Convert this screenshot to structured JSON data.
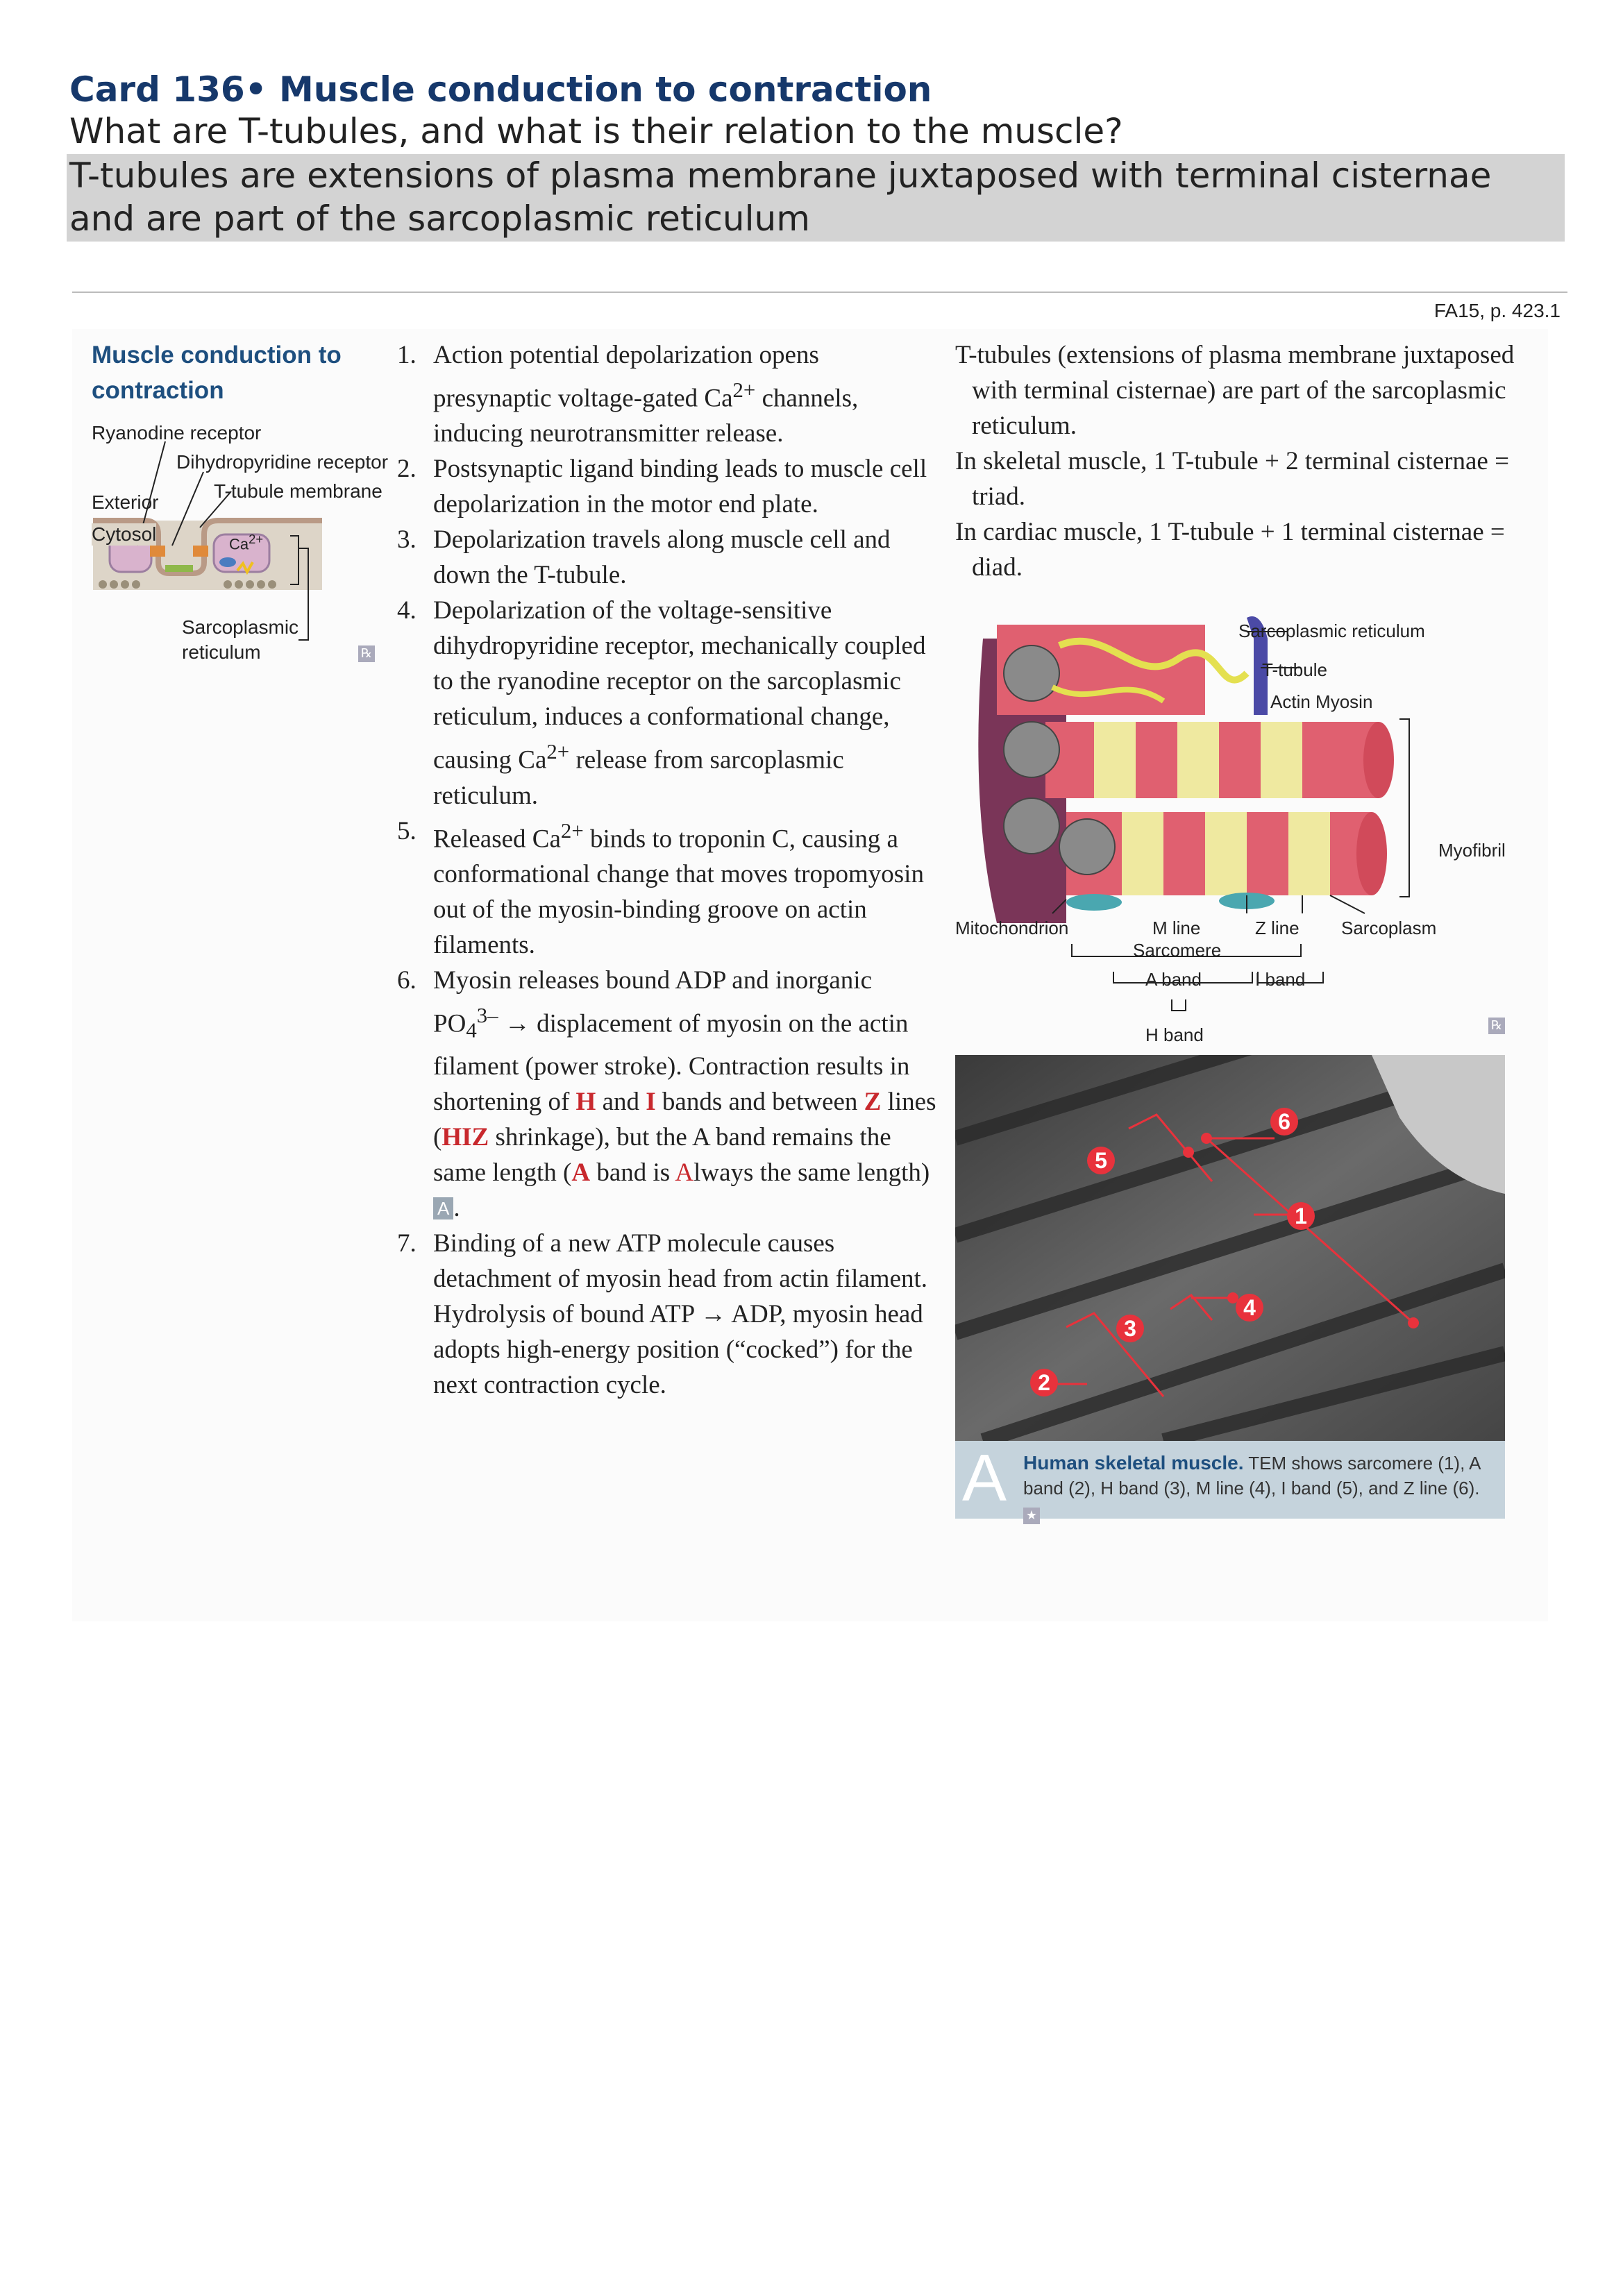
{
  "card": {
    "title": "Card 136• Muscle conduction to contraction",
    "question": "What are T-tubules, and what is their relation to the muscle?",
    "answer_line1": "T-tubules are extensions of plasma membrane juxtaposed with terminal cisternae",
    "answer_line2": "and are part of the sarcoplasmic reticulum"
  },
  "page_ref": "FA15, p. 423.1",
  "section": {
    "title_line1": "Muscle conduction to",
    "title_line2": "contraction"
  },
  "left_diagram": {
    "ryanodine": "Ryanodine receptor",
    "dihydropyridine": "Dihydropyridine receptor",
    "ttubule_membrane": "T-tubule membrane",
    "exterior": "Exterior",
    "cytosol": "Cytosol",
    "ca": "Ca",
    "ca_sup": "2+",
    "sr_line1": "Sarcoplasmic",
    "sr_line2": "reticulum",
    "rx": "℞"
  },
  "steps": [
    {
      "num": "1.",
      "text_a": "Action potential depolarization opens presynaptic voltage-gated Ca",
      "sup": "2+",
      "text_b": " channels, inducing neurotransmitter release."
    },
    {
      "num": "2.",
      "text": "Postsynaptic ligand binding leads to muscle cell depolarization in the motor end plate."
    },
    {
      "num": "3.",
      "text": "Depolarization travels along muscle cell and down the T-tubule."
    },
    {
      "num": "4.",
      "text_a": "Depolarization of the voltage-sensitive dihydropyridine receptor, mechanically coupled to the ryanodine receptor on the sarcoplasmic reticulum, induces a conformational change, causing Ca",
      "sup": "2+",
      "text_b": " release from sarcoplasmic reticulum."
    },
    {
      "num": "5.",
      "text_a": "Released Ca",
      "sup": "2+",
      "text_b": " binds to troponin C, causing a conformational change that moves tropomyosin out of the myosin-binding groove on actin filaments."
    },
    {
      "num": "6.",
      "t1": "Myosin releases bound ADP and inorganic PO",
      "sub": "4",
      "sup": "3–",
      "t2": " → displacement of myosin on the actin filament (power stroke). Contraction results in shortening of ",
      "h": "H",
      "t3": " and ",
      "i": "I",
      "t4": " bands and between ",
      "z": "Z",
      "t5": " lines (",
      "hiz": "HIZ",
      "t6": " shrinkage), but the A band remains the same length (",
      "a1": "A",
      "t7": " band is ",
      "a2": "A",
      "t8": "lways the same length) ",
      "tag": "A",
      "t9": "."
    },
    {
      "num": "7.",
      "text": "Binding of a new ATP molecule causes detachment of myosin head from actin filament. Hydrolysis of bound ATP → ADP, myosin head adopts high-energy position (“cocked”) for the next contraction cycle."
    }
  ],
  "right_text": {
    "p1": "T-tubules (extensions of plasma membrane juxtaposed with terminal cisternae) are part of the sarcoplasmic reticulum.",
    "p2": "In skeletal muscle, 1 T-tubule + 2 terminal cisternae = triad.",
    "p3": "In cardiac muscle, 1 T-tubule + 1 terminal cisternae = diad."
  },
  "muscle_diagram": {
    "sarcoplasmic_reticulum": "Sarcoplasmic reticulum",
    "t_tubule": "T-tubule",
    "actin": "Actin",
    "myosin": "Myosin",
    "myofibril": "Myofibril",
    "mitochondrion": "Mitochondrion",
    "m_line": "M line",
    "z_line": "Z line",
    "sarcoplasm": "Sarcoplasm",
    "sarcomere": "Sarcomere",
    "a_band": "A band",
    "i_band": "I band",
    "h_band": "H band",
    "rx": "℞"
  },
  "tem": {
    "markers": [
      "1",
      "2",
      "3",
      "4",
      "5",
      "6"
    ]
  },
  "caption": {
    "letter": "A",
    "bold": "Human skeletal muscle.",
    "text": " TEM shows sarcomere (1), A band (2), H band (3), M line (4), I band (5), and Z line (6).",
    "icon": "★"
  },
  "colors": {
    "title": "#16386b",
    "section": "#1e4f7f",
    "accent_red": "#c8282d",
    "answer_bg": "#d3d3d3",
    "caption_bg": "#c5d3dc"
  }
}
